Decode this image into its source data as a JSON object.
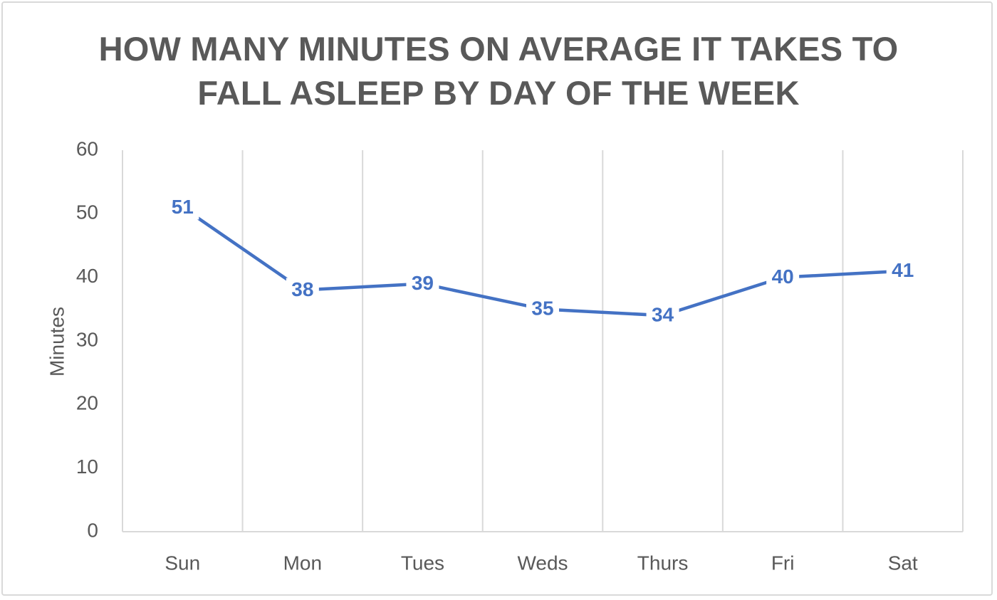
{
  "chart_data": {
    "type": "line",
    "title_lines": [
      "HOW MANY MINUTES ON AVERAGE IT TAKES TO",
      "FALL ASLEEP BY DAY OF THE WEEK"
    ],
    "xlabel": "",
    "ylabel": "Minutes",
    "categories": [
      "Sun",
      "Mon",
      "Tues",
      "Weds",
      "Thurs",
      "Fri",
      "Sat"
    ],
    "series": [
      {
        "values": [
          51,
          38,
          39,
          35,
          34,
          40,
          41
        ]
      }
    ],
    "ylim": [
      0,
      60
    ],
    "yticks": [
      0,
      10,
      20,
      30,
      40,
      50,
      60
    ],
    "grid": "vertical",
    "data_labels": true,
    "colors": {
      "line": "#4472c4",
      "grid": "#d9d9d9",
      "text": "#595959"
    }
  }
}
